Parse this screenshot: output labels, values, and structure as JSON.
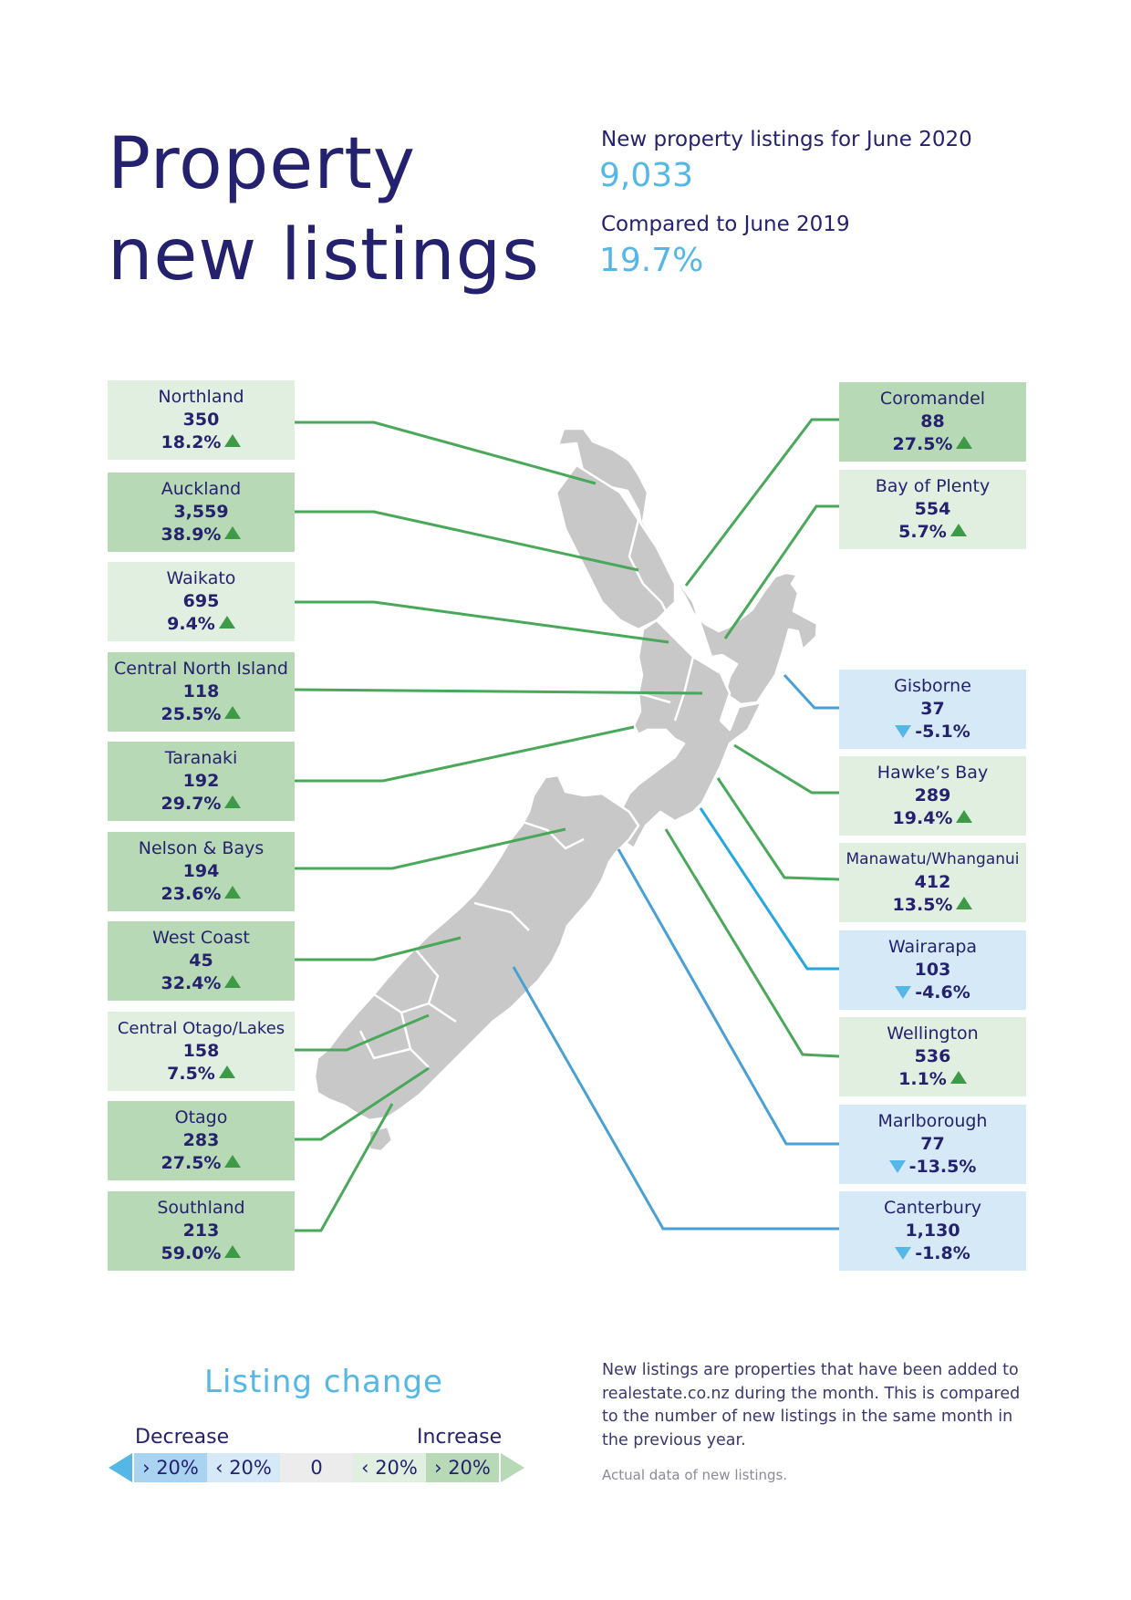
{
  "header": {
    "title_line1": "Property",
    "title_line2": "new listings",
    "listings_label": "New property listings for June 2020",
    "listings_value": "9,033",
    "compare_label": "Compared to June 2019",
    "compare_value": "19.7%"
  },
  "colors": {
    "navy": "#24226e",
    "increase_line": "#4aa85a",
    "decrease_line": "#4a9fd6",
    "accent_blue": "#55b7e5",
    "map_fill": "#c8c8c8",
    "increase_over_20": "#b8d9b5",
    "increase_under_20": "#e1efe0",
    "decrease_under_20": "#d6e9f7",
    "decrease_over_20": "#a9d3f1"
  },
  "regions": {
    "northland": {
      "name": "Northland",
      "listings": "350",
      "change": "18.2%",
      "direction": "up"
    },
    "auckland": {
      "name": "Auckland",
      "listings": "3,559",
      "change": "38.9%",
      "direction": "up"
    },
    "waikato": {
      "name": "Waikato",
      "listings": "695",
      "change": "9.4%",
      "direction": "up"
    },
    "central_north": {
      "name": "Central North Island",
      "listings": "118",
      "change": "25.5%",
      "direction": "up"
    },
    "taranaki": {
      "name": "Taranaki",
      "listings": "192",
      "change": "29.7%",
      "direction": "up"
    },
    "nelson": {
      "name": "Nelson & Bays",
      "listings": "194",
      "change": "23.6%",
      "direction": "up"
    },
    "west_coast": {
      "name": "West Coast",
      "listings": "45",
      "change": "32.4%",
      "direction": "up"
    },
    "central_otago": {
      "name": "Central Otago/Lakes",
      "listings": "158",
      "change": "7.5%",
      "direction": "up"
    },
    "otago": {
      "name": "Otago",
      "listings": "283",
      "change": "27.5%",
      "direction": "up"
    },
    "southland": {
      "name": "Southland",
      "listings": "213",
      "change": "59.0%",
      "direction": "up"
    },
    "coromandel": {
      "name": "Coromandel",
      "listings": "88",
      "change": "27.5%",
      "direction": "up"
    },
    "bay_of_plenty": {
      "name": "Bay of Plenty",
      "listings": "554",
      "change": "5.7%",
      "direction": "up"
    },
    "gisborne": {
      "name": "Gisborne",
      "listings": "37",
      "change": "-5.1%",
      "direction": "down"
    },
    "hawkes_bay": {
      "name": "Hawke’s Bay",
      "listings": "289",
      "change": "19.4%",
      "direction": "up"
    },
    "manawatu": {
      "name": "Manawatu/Whanganui",
      "listings": "412",
      "change": "13.5%",
      "direction": "up"
    },
    "wairarapa": {
      "name": "Wairarapa",
      "listings": "103",
      "change": "-4.6%",
      "direction": "down"
    },
    "wellington": {
      "name": "Wellington",
      "listings": "536",
      "change": "1.1%",
      "direction": "up"
    },
    "marlborough": {
      "name": "Marlborough",
      "listings": "77",
      "change": "-13.5%",
      "direction": "down"
    },
    "canterbury": {
      "name": "Canterbury",
      "listings": "1,130",
      "change": "-1.8%",
      "direction": "down"
    }
  },
  "legend": {
    "title": "Listing change",
    "decrease_label": "Decrease",
    "increase_label": "Increase",
    "seg_dec_high": "› 20%",
    "seg_dec_low": "‹ 20%",
    "seg_zero": "0",
    "seg_inc_low": "‹ 20%",
    "seg_inc_high": "› 20%"
  },
  "notes": {
    "description": "New listings are properties that have been added to realestate.co.nz during the month. This is compared to the number of new listings in the same month in the previous year.",
    "actual_data": "Actual data of new listings."
  }
}
